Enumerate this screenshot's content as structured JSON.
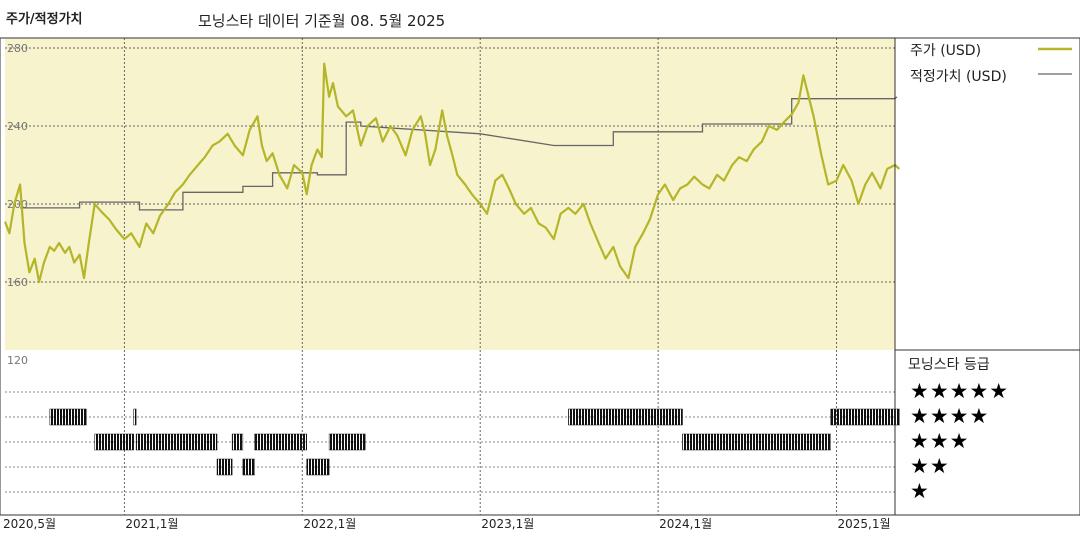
{
  "header": {
    "left_title": "주가/적정가치",
    "subtitle": "모닝스타 데이터 기준월 08. 5월 2025"
  },
  "legend": {
    "price_label": "주가 (USD)",
    "fair_value_label": "적정가치 (USD)",
    "price_color": "#b5b52a",
    "fair_value_color": "#666666"
  },
  "rating": {
    "title": "모닝스타 등급",
    "rows": [
      "★★★★★",
      "★★★★",
      "★★★",
      "★★",
      "★"
    ]
  },
  "chart_data": {
    "type": "line",
    "x_range": [
      "2020-05",
      "2025-05"
    ],
    "ylim": [
      120,
      280
    ],
    "yticks": [
      120,
      160,
      200,
      240,
      280
    ],
    "xticks": [
      {
        "date": "2020-05",
        "label": "2020,5월"
      },
      {
        "date": "2021-01",
        "label": "2021,1월"
      },
      {
        "date": "2022-01",
        "label": "2022,1월"
      },
      {
        "date": "2023-01",
        "label": "2023,1월"
      },
      {
        "date": "2024-01",
        "label": "2024,1월"
      },
      {
        "date": "2025-01",
        "label": "2025,1월"
      }
    ],
    "grid": true,
    "series": [
      {
        "name": "주가 (USD)",
        "points": [
          [
            "2020-05-01",
            191
          ],
          [
            "2020-05-10",
            185
          ],
          [
            "2020-05-20",
            200
          ],
          [
            "2020-06-01",
            210
          ],
          [
            "2020-06-10",
            180
          ],
          [
            "2020-06-20",
            165
          ],
          [
            "2020-07-01",
            172
          ],
          [
            "2020-07-10",
            160
          ],
          [
            "2020-07-20",
            170
          ],
          [
            "2020-08-01",
            178
          ],
          [
            "2020-08-10",
            176
          ],
          [
            "2020-08-20",
            180
          ],
          [
            "2020-09-01",
            175
          ],
          [
            "2020-09-10",
            178
          ],
          [
            "2020-09-20",
            170
          ],
          [
            "2020-10-01",
            174
          ],
          [
            "2020-10-10",
            162
          ],
          [
            "2020-10-20",
            180
          ],
          [
            "2020-11-01",
            200
          ],
          [
            "2020-11-15",
            196
          ],
          [
            "2020-12-01",
            192
          ],
          [
            "2020-12-15",
            187
          ],
          [
            "2021-01-01",
            182
          ],
          [
            "2021-01-15",
            185
          ],
          [
            "2021-02-01",
            178
          ],
          [
            "2021-02-15",
            190
          ],
          [
            "2021-03-01",
            185
          ],
          [
            "2021-03-15",
            194
          ],
          [
            "2021-04-01",
            200
          ],
          [
            "2021-04-15",
            206
          ],
          [
            "2021-05-01",
            210
          ],
          [
            "2021-05-15",
            215
          ],
          [
            "2021-06-01",
            220
          ],
          [
            "2021-06-15",
            224
          ],
          [
            "2021-07-01",
            230
          ],
          [
            "2021-07-15",
            232
          ],
          [
            "2021-08-01",
            236
          ],
          [
            "2021-08-15",
            230
          ],
          [
            "2021-09-01",
            225
          ],
          [
            "2021-09-15",
            238
          ],
          [
            "2021-10-01",
            245
          ],
          [
            "2021-10-10",
            230
          ],
          [
            "2021-10-20",
            222
          ],
          [
            "2021-11-01",
            226
          ],
          [
            "2021-11-15",
            215
          ],
          [
            "2021-12-01",
            208
          ],
          [
            "2021-12-15",
            220
          ],
          [
            "2022-01-01",
            216
          ],
          [
            "2022-01-10",
            205
          ],
          [
            "2022-01-20",
            220
          ],
          [
            "2022-02-01",
            228
          ],
          [
            "2022-02-10",
            224
          ],
          [
            "2022-02-15",
            272
          ],
          [
            "2022-02-25",
            255
          ],
          [
            "2022-03-05",
            262
          ],
          [
            "2022-03-15",
            250
          ],
          [
            "2022-04-01",
            245
          ],
          [
            "2022-04-15",
            248
          ],
          [
            "2022-05-01",
            230
          ],
          [
            "2022-05-15",
            240
          ],
          [
            "2022-06-01",
            244
          ],
          [
            "2022-06-15",
            232
          ],
          [
            "2022-07-01",
            240
          ],
          [
            "2022-07-15",
            235
          ],
          [
            "2022-08-01",
            225
          ],
          [
            "2022-08-15",
            238
          ],
          [
            "2022-09-01",
            245
          ],
          [
            "2022-09-10",
            236
          ],
          [
            "2022-09-20",
            220
          ],
          [
            "2022-10-01",
            228
          ],
          [
            "2022-10-15",
            248
          ],
          [
            "2022-10-25",
            235
          ],
          [
            "2022-11-05",
            225
          ],
          [
            "2022-11-15",
            215
          ],
          [
            "2022-12-01",
            210
          ],
          [
            "2022-12-15",
            205
          ],
          [
            "2023-01-01",
            200
          ],
          [
            "2023-01-15",
            195
          ],
          [
            "2023-02-01",
            212
          ],
          [
            "2023-02-15",
            215
          ],
          [
            "2023-03-01",
            208
          ],
          [
            "2023-03-15",
            200
          ],
          [
            "2023-04-01",
            195
          ],
          [
            "2023-04-15",
            198
          ],
          [
            "2023-05-01",
            190
          ],
          [
            "2023-05-15",
            188
          ],
          [
            "2023-06-01",
            182
          ],
          [
            "2023-06-15",
            195
          ],
          [
            "2023-07-01",
            198
          ],
          [
            "2023-07-15",
            195
          ],
          [
            "2023-08-01",
            200
          ],
          [
            "2023-08-15",
            190
          ],
          [
            "2023-09-01",
            180
          ],
          [
            "2023-09-15",
            172
          ],
          [
            "2023-10-01",
            178
          ],
          [
            "2023-10-15",
            168
          ],
          [
            "2023-11-01",
            162
          ],
          [
            "2023-11-15",
            178
          ],
          [
            "2023-12-01",
            185
          ],
          [
            "2023-12-15",
            192
          ],
          [
            "2024-01-01",
            205
          ],
          [
            "2024-01-15",
            210
          ],
          [
            "2024-02-01",
            202
          ],
          [
            "2024-02-15",
            208
          ],
          [
            "2024-03-01",
            210
          ],
          [
            "2024-03-15",
            214
          ],
          [
            "2024-04-01",
            210
          ],
          [
            "2024-04-15",
            208
          ],
          [
            "2024-05-01",
            215
          ],
          [
            "2024-05-15",
            212
          ],
          [
            "2024-06-01",
            220
          ],
          [
            "2024-06-15",
            224
          ],
          [
            "2024-07-01",
            222
          ],
          [
            "2024-07-15",
            228
          ],
          [
            "2024-08-01",
            232
          ],
          [
            "2024-08-15",
            240
          ],
          [
            "2024-09-01",
            238
          ],
          [
            "2024-09-15",
            242
          ],
          [
            "2024-10-01",
            246
          ],
          [
            "2024-10-15",
            252
          ],
          [
            "2024-10-25",
            266
          ],
          [
            "2024-11-05",
            255
          ],
          [
            "2024-11-15",
            245
          ],
          [
            "2024-12-01",
            225
          ],
          [
            "2024-12-15",
            210
          ],
          [
            "2025-01-01",
            212
          ],
          [
            "2025-01-15",
            220
          ],
          [
            "2025-02-01",
            212
          ],
          [
            "2025-02-15",
            200
          ],
          [
            "2025-03-01",
            210
          ],
          [
            "2025-03-15",
            216
          ],
          [
            "2025-04-01",
            208
          ],
          [
            "2025-04-15",
            218
          ],
          [
            "2025-05-01",
            220
          ],
          [
            "2025-05-10",
            218
          ]
        ]
      },
      {
        "name": "적정가치 (USD)",
        "points": [
          [
            "2020-06-01",
            198
          ],
          [
            "2020-10-01",
            198
          ],
          [
            "2020-10-01",
            201
          ],
          [
            "2021-02-01",
            201
          ],
          [
            "2021-02-01",
            197
          ],
          [
            "2021-05-01",
            197
          ],
          [
            "2021-05-01",
            206
          ],
          [
            "2021-09-01",
            206
          ],
          [
            "2021-09-01",
            209
          ],
          [
            "2021-11-01",
            209
          ],
          [
            "2021-11-01",
            216
          ],
          [
            "2022-02-01",
            216
          ],
          [
            "2022-02-01",
            215
          ],
          [
            "2022-04-01",
            215
          ],
          [
            "2022-04-01",
            242
          ],
          [
            "2022-05-01",
            242
          ],
          [
            "2022-05-01",
            240
          ],
          [
            "2023-01-01",
            236
          ],
          [
            "2023-06-01",
            230
          ],
          [
            "2023-10-01",
            230
          ],
          [
            "2023-10-01",
            237
          ],
          [
            "2024-04-01",
            237
          ],
          [
            "2024-04-01",
            241
          ],
          [
            "2024-10-01",
            241
          ],
          [
            "2024-10-01",
            254
          ],
          [
            "2025-05-01",
            254
          ],
          [
            "2025-05-05",
            255
          ]
        ]
      }
    ],
    "rating_timeline": {
      "rows": [
        5,
        4,
        3,
        2,
        1
      ],
      "segments": [
        {
          "stars": 4,
          "start": "2020-08-01",
          "end": "2020-10-15"
        },
        {
          "stars": 4,
          "start": "2021-01-20",
          "end": "2021-01-25"
        },
        {
          "stars": 4,
          "start": "2023-07-01",
          "end": "2023-12-31"
        },
        {
          "stars": 4,
          "start": "2024-01-01",
          "end": "2024-02-20"
        },
        {
          "stars": 4,
          "start": "2024-12-20",
          "end": "2025-05-10"
        },
        {
          "stars": 3,
          "start": "2020-11-01",
          "end": "2021-01-20"
        },
        {
          "stars": 3,
          "start": "2021-01-25",
          "end": "2021-07-10"
        },
        {
          "stars": 3,
          "start": "2021-08-10",
          "end": "2021-09-01"
        },
        {
          "stars": 3,
          "start": "2021-09-25",
          "end": "2022-01-10"
        },
        {
          "stars": 3,
          "start": "2022-02-25",
          "end": "2022-05-10"
        },
        {
          "stars": 3,
          "start": "2024-02-20",
          "end": "2024-12-20"
        },
        {
          "stars": 2,
          "start": "2021-07-10",
          "end": "2021-08-10"
        },
        {
          "stars": 2,
          "start": "2021-09-01",
          "end": "2021-09-25"
        },
        {
          "stars": 2,
          "start": "2022-01-10",
          "end": "2022-02-25"
        }
      ]
    }
  }
}
